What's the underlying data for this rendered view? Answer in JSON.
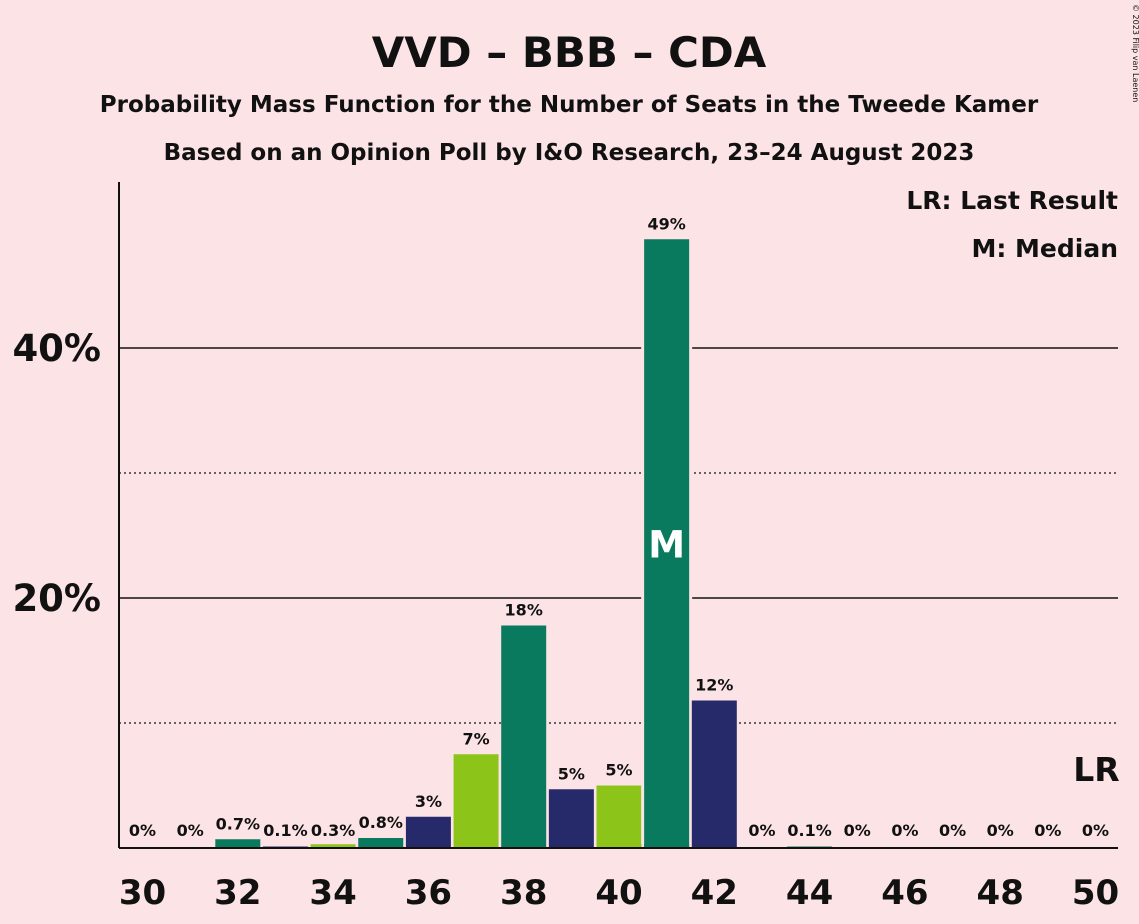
{
  "chart_data": {
    "type": "bar",
    "title": "VVD – BBB – CDA",
    "subtitle": "Probability Mass Function for the Number of Seats in the Tweede Kamer",
    "subtitle2": "Based on an Opinion Poll by I&O Research, 23–24 August 2023",
    "copyright": "© 2023 Filip van Laenen",
    "legend": {
      "last_result": "LR: Last Result",
      "median": "M: Median"
    },
    "ylim": [
      0,
      53
    ],
    "y_ticks": [
      {
        "value": 20,
        "label": "20%",
        "style": "solid"
      },
      {
        "value": 40,
        "label": "40%",
        "style": "solid"
      }
    ],
    "y_minor_gridlines": [
      10,
      30
    ],
    "x_tick_labels": [
      "30",
      "32",
      "34",
      "36",
      "38",
      "40",
      "42",
      "44",
      "46",
      "48",
      "50"
    ],
    "x_tick_values": [
      30,
      32,
      34,
      36,
      38,
      40,
      42,
      44,
      46,
      48,
      50
    ],
    "categories": [
      30,
      31,
      32,
      33,
      34,
      35,
      36,
      37,
      38,
      39,
      40,
      41,
      42,
      43,
      44,
      45,
      46,
      47,
      48,
      49,
      50
    ],
    "values": [
      0,
      0,
      0.7,
      0.1,
      0.3,
      0.8,
      2.5,
      7.5,
      17.8,
      4.7,
      5.0,
      48.7,
      11.8,
      0,
      0.1,
      0,
      0,
      0,
      0,
      0,
      0
    ],
    "labels": [
      "0%",
      "0%",
      "0.7%",
      "0.1%",
      "0.3%",
      "0.8%",
      "3%",
      "7%",
      "18%",
      "5%",
      "5%",
      "49%",
      "12%",
      "0%",
      "0.1%",
      "0%",
      "0%",
      "0%",
      "0%",
      "0%",
      "0%"
    ],
    "colors": [
      "#097a5e",
      "#26296a",
      "#097a5e",
      "#26296a",
      "#8cc41a",
      "#097a5e",
      "#26296a",
      "#8cc41a",
      "#097a5e",
      "#26296a",
      "#8cc41a",
      "#097a5e",
      "#26296a",
      "#8cc41a",
      "#097a5e",
      "#26296a",
      "#8cc41a",
      "#097a5e",
      "#26296a",
      "#8cc41a",
      "#097a5e"
    ],
    "median_seat": 41,
    "median_marker": "M",
    "last_result_seat": 50,
    "last_result_marker": "LR"
  }
}
